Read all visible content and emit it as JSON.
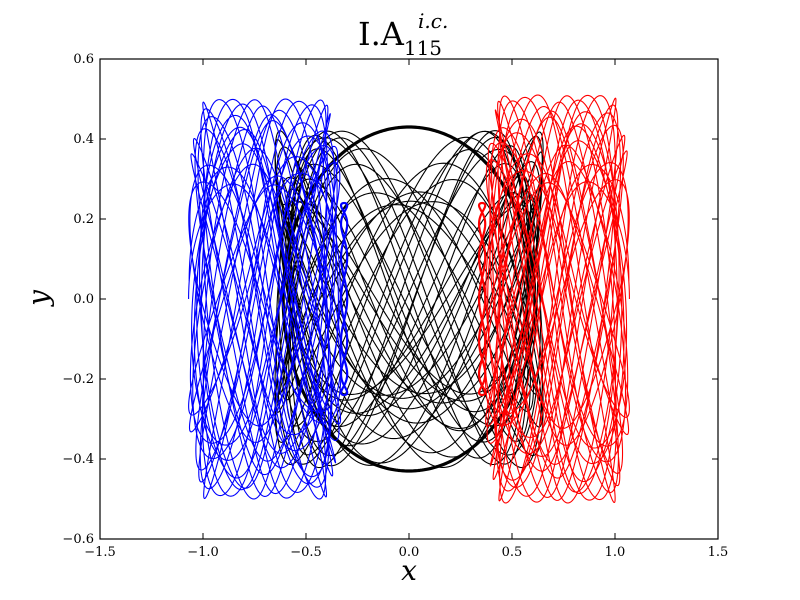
{
  "chart_data": {
    "type": "line",
    "title": {
      "main": "I.A",
      "superscript": "i.c.",
      "subscript": "115"
    },
    "xlabel": "x",
    "ylabel": "y",
    "xlim": [
      -1.5,
      1.5
    ],
    "ylim": [
      -0.6,
      0.6
    ],
    "xticks": [
      -1.5,
      -1.0,
      -0.5,
      0.0,
      0.5,
      1.0,
      1.5
    ],
    "yticks": [
      -0.6,
      -0.4,
      -0.2,
      0.0,
      0.2,
      0.4,
      0.6
    ],
    "xtick_labels": [
      "−1.5",
      "−1.0",
      "−0.5",
      "0.0",
      "0.5",
      "1.0",
      "1.5"
    ],
    "ytick_labels": [
      "−0.6",
      "−0.4",
      "−0.2",
      "0.0",
      "0.2",
      "0.4",
      "0.6"
    ],
    "grid": false,
    "series": [
      {
        "color": "#0000ff",
        "x_range": [
          -1.07,
          -0.33
        ],
        "y_range": [
          -0.51,
          0.5
        ]
      },
      {
        "color": "#000000",
        "x_range": [
          -0.62,
          0.62
        ],
        "y_range": [
          -0.43,
          0.43
        ]
      },
      {
        "color": "#ff0000",
        "x_range": [
          0.37,
          1.07
        ],
        "y_range": [
          -0.5,
          0.51
        ]
      }
    ]
  }
}
